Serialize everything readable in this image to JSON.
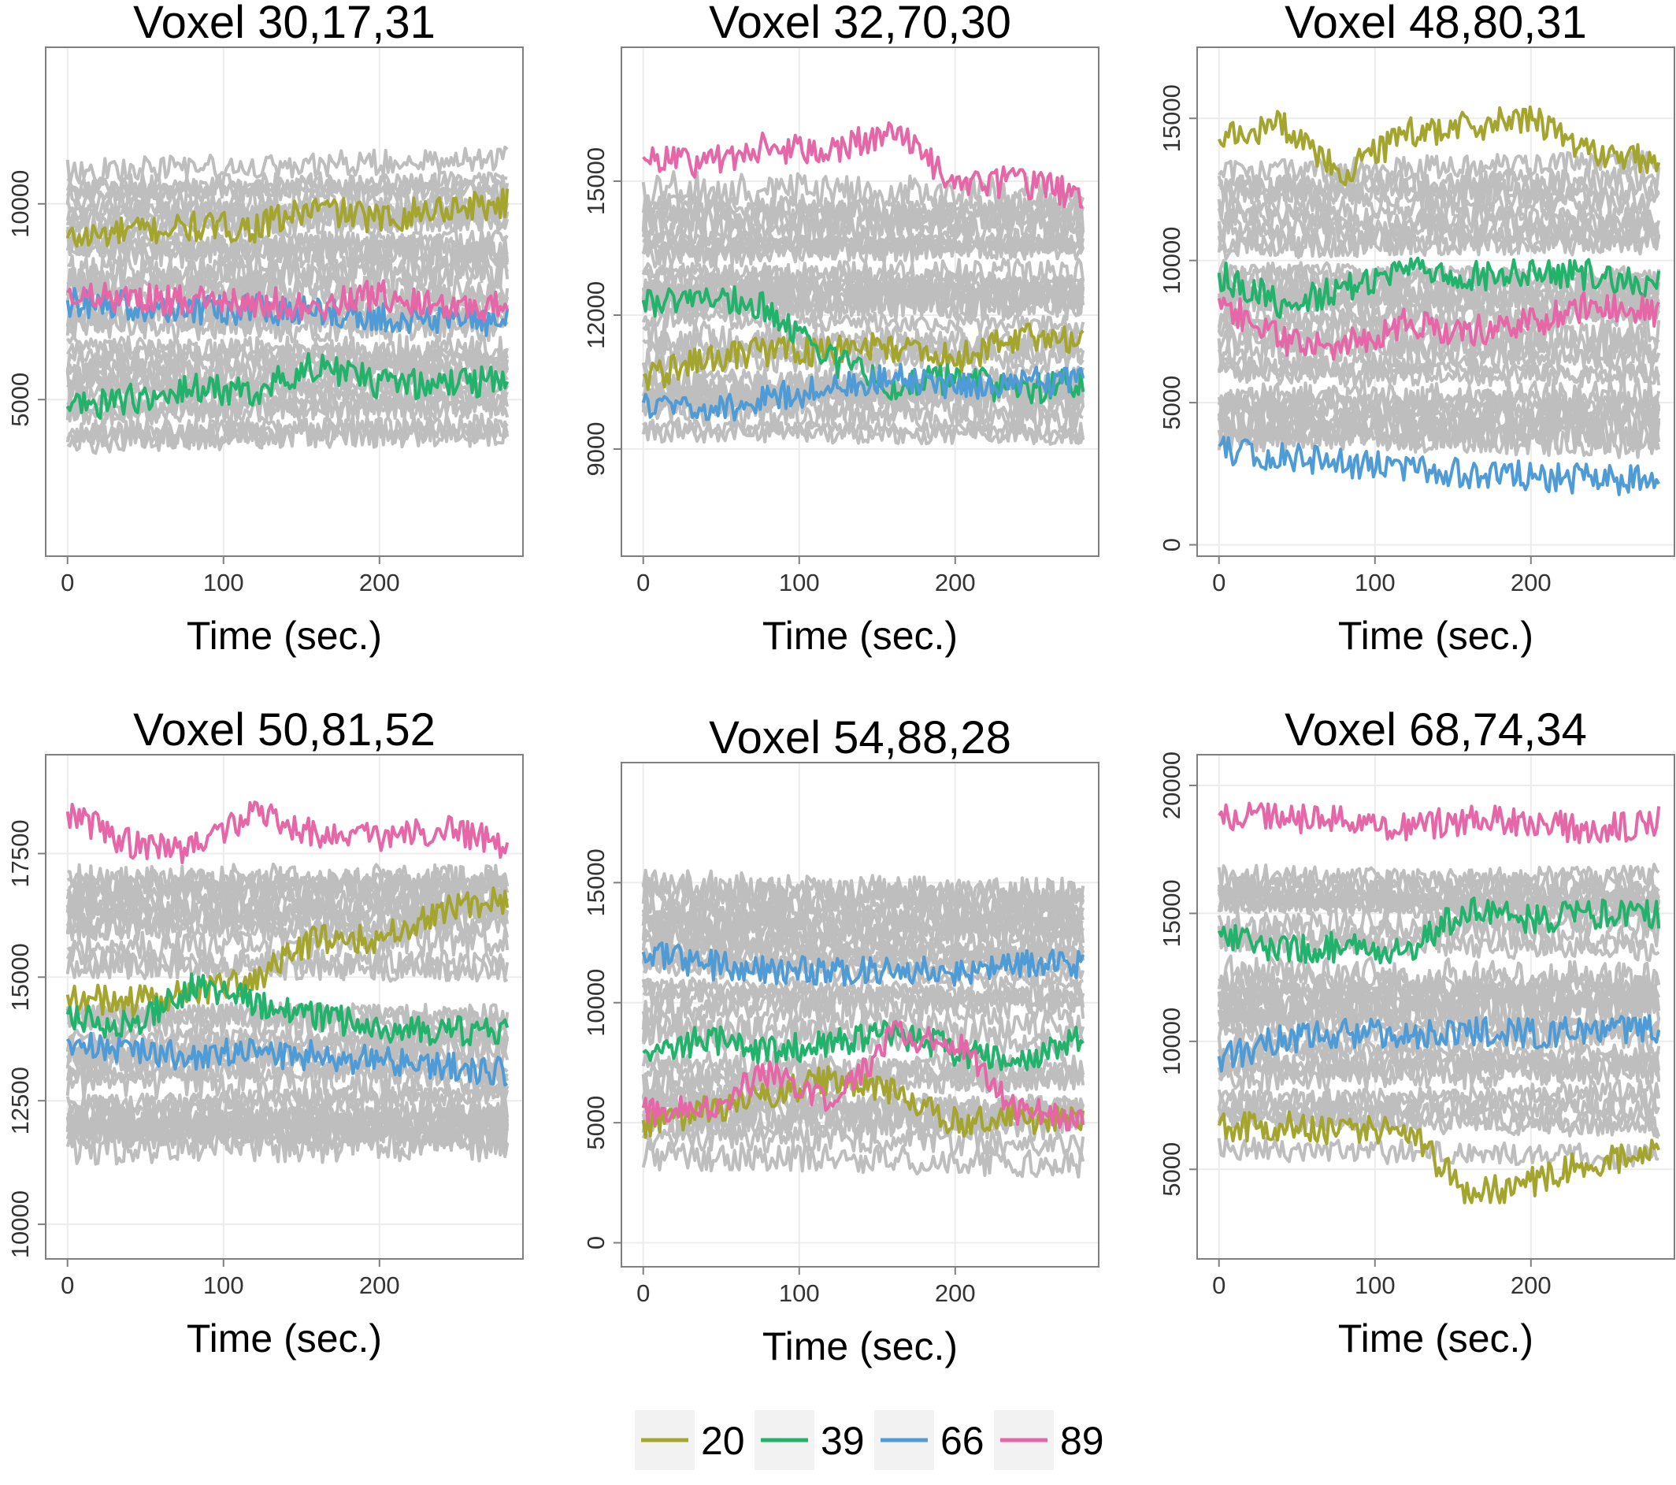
{
  "figure": {
    "legend": {
      "placement": "bottom-center",
      "entries": [
        {
          "label": "20",
          "color": "#A3A52E"
        },
        {
          "label": "39",
          "color": "#22B26C"
        },
        {
          "label": "66",
          "color": "#4E9BD6"
        },
        {
          "label": "89",
          "color": "#E667A8"
        }
      ]
    },
    "background_color": "#BEBEBE"
  },
  "chart_data": [
    {
      "type": "line",
      "title": "Voxel 30,17,31",
      "xlabel": "Time (sec.)",
      "ylabel": "",
      "xlim": [
        -14,
        292
      ],
      "ylim": [
        1000,
        14000
      ],
      "xticks": [
        0,
        100,
        200
      ],
      "yticks": [
        5000,
        10000
      ],
      "ytick_labels": [
        "5000",
        "10000"
      ],
      "grid": true,
      "series": [
        {
          "name": "20",
          "color": "#A3A52E",
          "x": [
            0,
            40,
            80,
            120,
            160,
            200,
            240,
            280
          ],
          "y": [
            9100,
            9300,
            9400,
            9400,
            9900,
            9600,
            9900,
            10000
          ]
        },
        {
          "name": "39",
          "color": "#22B26C",
          "x": [
            0,
            40,
            80,
            120,
            160,
            200,
            240,
            280
          ],
          "y": [
            4800,
            5000,
            5300,
            5200,
            5900,
            5400,
            5400,
            5500
          ]
        },
        {
          "name": "66",
          "color": "#4E9BD6",
          "x": [
            0,
            40,
            80,
            120,
            160,
            200,
            240,
            280
          ],
          "y": [
            7500,
            7400,
            7300,
            7300,
            7300,
            7100,
            7100,
            7000
          ]
        },
        {
          "name": "89",
          "color": "#E667A8",
          "x": [
            0,
            40,
            80,
            120,
            160,
            200,
            240,
            280
          ],
          "y": [
            7700,
            7600,
            7500,
            7500,
            7400,
            7700,
            7300,
            7400
          ]
        }
      ]
    },
    {
      "type": "line",
      "title": "Voxel 32,70,30",
      "xlabel": "Time (sec.)",
      "ylabel": "",
      "xlim": [
        -14,
        292
      ],
      "ylim": [
        6600,
        18000
      ],
      "xticks": [
        0,
        100,
        200
      ],
      "yticks": [
        9000,
        12000,
        15000
      ],
      "ytick_labels": [
        "9000",
        "12000",
        "15000"
      ],
      "grid": true,
      "series": [
        {
          "name": "20",
          "color": "#A3A52E",
          "x": [
            0,
            40,
            80,
            120,
            160,
            200,
            240,
            280
          ],
          "y": [
            10600,
            11000,
            11200,
            11200,
            11300,
            11000,
            11500,
            11500
          ]
        },
        {
          "name": "39",
          "color": "#22B26C",
          "x": [
            0,
            40,
            80,
            120,
            160,
            200,
            240,
            280
          ],
          "y": [
            12300,
            12400,
            12200,
            11000,
            10400,
            10600,
            10300,
            10500
          ]
        },
        {
          "name": "66",
          "color": "#4E9BD6",
          "x": [
            0,
            40,
            80,
            120,
            160,
            200,
            240,
            280
          ],
          "y": [
            10000,
            9900,
            10100,
            10400,
            10600,
            10400,
            10500,
            10500
          ]
        },
        {
          "name": "89",
          "color": "#E667A8",
          "x": [
            0,
            40,
            80,
            120,
            160,
            200,
            240,
            280
          ],
          "y": [
            15500,
            15400,
            15800,
            15600,
            16200,
            14900,
            15000,
            14700
          ]
        }
      ]
    },
    {
      "type": "line",
      "title": "Voxel 48,80,31",
      "xlabel": "Time (sec.)",
      "ylabel": "",
      "xlim": [
        -14,
        292
      ],
      "ylim": [
        -400,
        17500
      ],
      "xticks": [
        0,
        100,
        200
      ],
      "yticks": [
        0,
        5000,
        10000,
        15000
      ],
      "ytick_labels": [
        "0",
        "5000",
        "10000",
        "15000"
      ],
      "grid": true,
      "series": [
        {
          "name": "20",
          "color": "#A3A52E",
          "x": [
            0,
            40,
            80,
            120,
            160,
            200,
            240,
            280
          ],
          "y": [
            14200,
            14800,
            13000,
            14500,
            14700,
            15000,
            13800,
            13500
          ]
        },
        {
          "name": "39",
          "color": "#22B26C",
          "x": [
            0,
            40,
            80,
            120,
            160,
            200,
            240,
            280
          ],
          "y": [
            9500,
            8500,
            9000,
            9700,
            9500,
            9500,
            9500,
            9200
          ]
        },
        {
          "name": "66",
          "color": "#4E9BD6",
          "x": [
            0,
            40,
            80,
            120,
            160,
            200,
            240,
            280
          ],
          "y": [
            3400,
            3100,
            2900,
            2600,
            2500,
            2400,
            2300,
            2300
          ]
        },
        {
          "name": "89",
          "color": "#E667A8",
          "x": [
            0,
            40,
            80,
            120,
            160,
            200,
            240,
            280
          ],
          "y": [
            8600,
            7200,
            7000,
            7800,
            7500,
            7800,
            8500,
            8200
          ]
        }
      ]
    },
    {
      "type": "line",
      "title": "Voxel 50,81,52",
      "xlabel": "Time (sec.)",
      "ylabel": "",
      "xlim": [
        -14,
        292
      ],
      "ylim": [
        9300,
        19500
      ],
      "xticks": [
        0,
        100,
        200
      ],
      "yticks": [
        10000,
        12500,
        15000,
        17500
      ],
      "ytick_labels": [
        "10000",
        "12500",
        "15000",
        "17500"
      ],
      "grid": true,
      "series": [
        {
          "name": "20",
          "color": "#A3A52E",
          "x": [
            0,
            40,
            80,
            120,
            160,
            200,
            240,
            280
          ],
          "y": [
            14600,
            14500,
            14700,
            14900,
            15800,
            15800,
            16400,
            16600
          ]
        },
        {
          "name": "39",
          "color": "#22B26C",
          "x": [
            0,
            40,
            80,
            120,
            160,
            200,
            240,
            280
          ],
          "y": [
            14200,
            14000,
            14800,
            14500,
            14200,
            14000,
            13900,
            13900
          ]
        },
        {
          "name": "66",
          "color": "#4E9BD6",
          "x": [
            0,
            40,
            80,
            120,
            160,
            200,
            240,
            280
          ],
          "y": [
            13700,
            13500,
            13400,
            13500,
            13400,
            13300,
            13200,
            13100
          ]
        },
        {
          "name": "89",
          "color": "#E667A8",
          "x": [
            0,
            40,
            80,
            120,
            160,
            200,
            240,
            280
          ],
          "y": [
            18300,
            17700,
            17600,
            18300,
            17900,
            17800,
            18000,
            17700
          ]
        }
      ]
    },
    {
      "type": "line",
      "title": "Voxel 54,88,28",
      "xlabel": "Time (sec.)",
      "ylabel": "",
      "xlim": [
        -14,
        292
      ],
      "ylim": [
        -1000,
        20000
      ],
      "xticks": [
        0,
        100,
        200
      ],
      "yticks": [
        0,
        5000,
        10000,
        15000
      ],
      "ytick_labels": [
        "0",
        "5000",
        "10000",
        "15000"
      ],
      "grid": true,
      "series": [
        {
          "name": "20",
          "color": "#A3A52E",
          "x": [
            0,
            40,
            80,
            120,
            160,
            200,
            240,
            280
          ],
          "y": [
            5000,
            5500,
            6200,
            6800,
            6400,
            5000,
            5200,
            5000
          ]
        },
        {
          "name": "39",
          "color": "#22B26C",
          "x": [
            0,
            40,
            80,
            120,
            160,
            200,
            240,
            280
          ],
          "y": [
            7800,
            8500,
            8000,
            8300,
            8800,
            8000,
            7500,
            8500
          ]
        },
        {
          "name": "66",
          "color": "#4E9BD6",
          "x": [
            0,
            40,
            80,
            120,
            160,
            200,
            240,
            280
          ],
          "y": [
            12000,
            11600,
            11400,
            11300,
            11400,
            11300,
            11600,
            11600
          ]
        },
        {
          "name": "89",
          "color": "#E667A8",
          "x": [
            0,
            40,
            80,
            120,
            160,
            200,
            240,
            280
          ],
          "y": [
            5500,
            5600,
            7000,
            5800,
            8600,
            8400,
            5500,
            5200
          ]
        }
      ]
    },
    {
      "type": "line",
      "title": "Voxel 68,74,34",
      "xlabel": "Time (sec.)",
      "ylabel": "",
      "xlim": [
        -14,
        292
      ],
      "ylim": [
        1500,
        21200
      ],
      "xticks": [
        0,
        100,
        200
      ],
      "yticks": [
        5000,
        10000,
        15000,
        20000
      ],
      "ytick_labels": [
        "5000",
        "10000",
        "15000",
        "20000"
      ],
      "grid": true,
      "series": [
        {
          "name": "20",
          "color": "#A3A52E",
          "x": [
            0,
            40,
            80,
            120,
            160,
            200,
            240,
            280
          ],
          "y": [
            6600,
            6700,
            6400,
            6600,
            4000,
            4500,
            5300,
            5600
          ]
        },
        {
          "name": "39",
          "color": "#22B26C",
          "x": [
            0,
            40,
            80,
            120,
            160,
            200,
            240,
            280
          ],
          "y": [
            14200,
            13600,
            13700,
            13600,
            15200,
            14800,
            15000,
            14900
          ]
        },
        {
          "name": "66",
          "color": "#4E9BD6",
          "x": [
            0,
            40,
            80,
            120,
            160,
            200,
            240,
            280
          ],
          "y": [
            9300,
            10100,
            10300,
            10300,
            10400,
            10300,
            10500,
            10400
          ]
        },
        {
          "name": "89",
          "color": "#E667A8",
          "x": [
            0,
            40,
            80,
            120,
            160,
            200,
            240,
            280
          ],
          "y": [
            18700,
            18800,
            18600,
            18300,
            18700,
            18600,
            18200,
            18600
          ]
        }
      ]
    }
  ]
}
